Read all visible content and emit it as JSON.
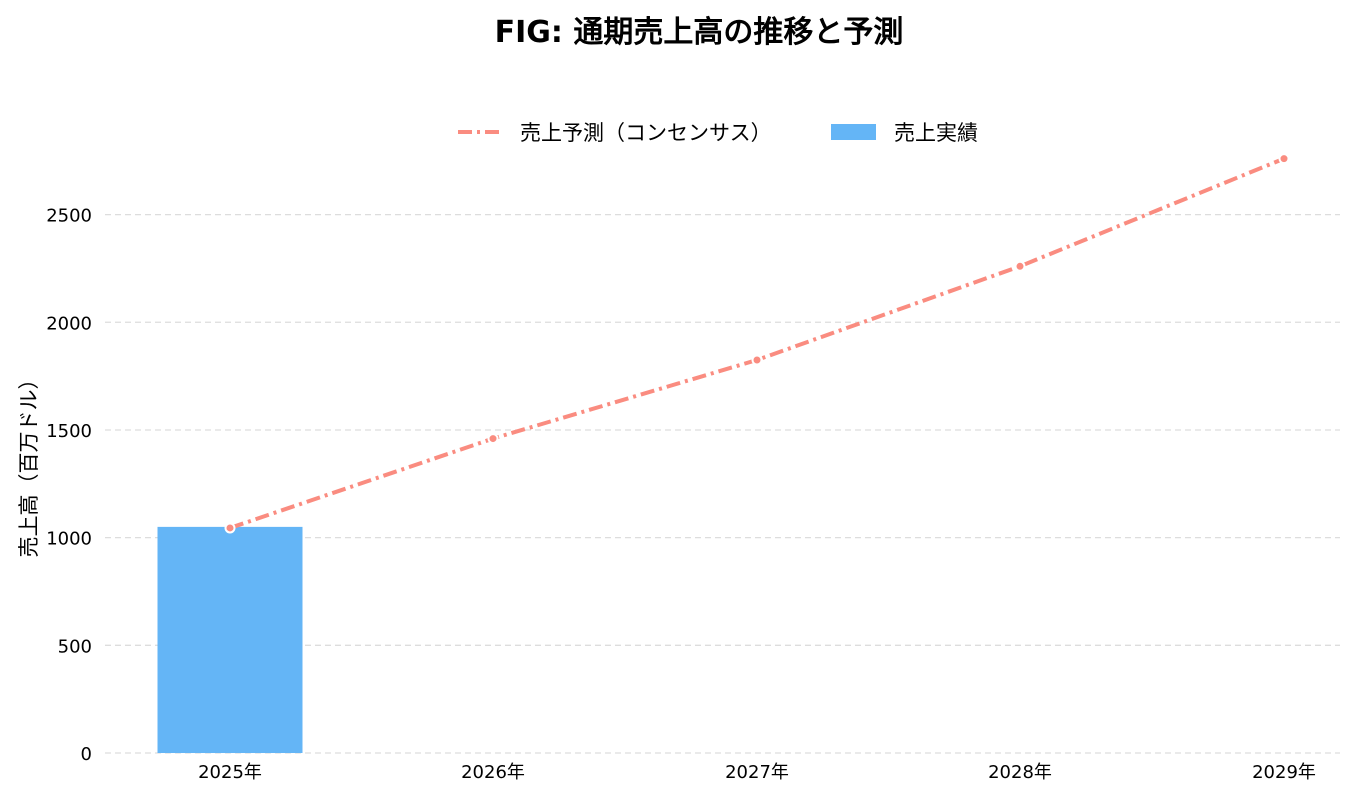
{
  "chart_data": {
    "type": "bar",
    "title": "FIG: 通期売上高の推移と予測",
    "xlabel": "",
    "ylabel": "売上高（百万ドル）",
    "categories": [
      "2025年",
      "2026年",
      "2027年",
      "2028年",
      "2029年"
    ],
    "ylim": [
      0,
      2800
    ],
    "yticks": [
      0,
      500,
      1000,
      1500,
      2000,
      2500
    ],
    "grid": true,
    "legend_position": "top-center",
    "series": [
      {
        "name": "売上予測（コンセンサス）",
        "type": "line",
        "style": "dash-dot",
        "color": "#FA8C80",
        "values": [
          1045,
          1460,
          1825,
          2260,
          2760
        ]
      },
      {
        "name": "売上実績",
        "type": "bar",
        "color": "#64B5F6",
        "values": [
          1050,
          null,
          null,
          null,
          null
        ]
      }
    ]
  }
}
